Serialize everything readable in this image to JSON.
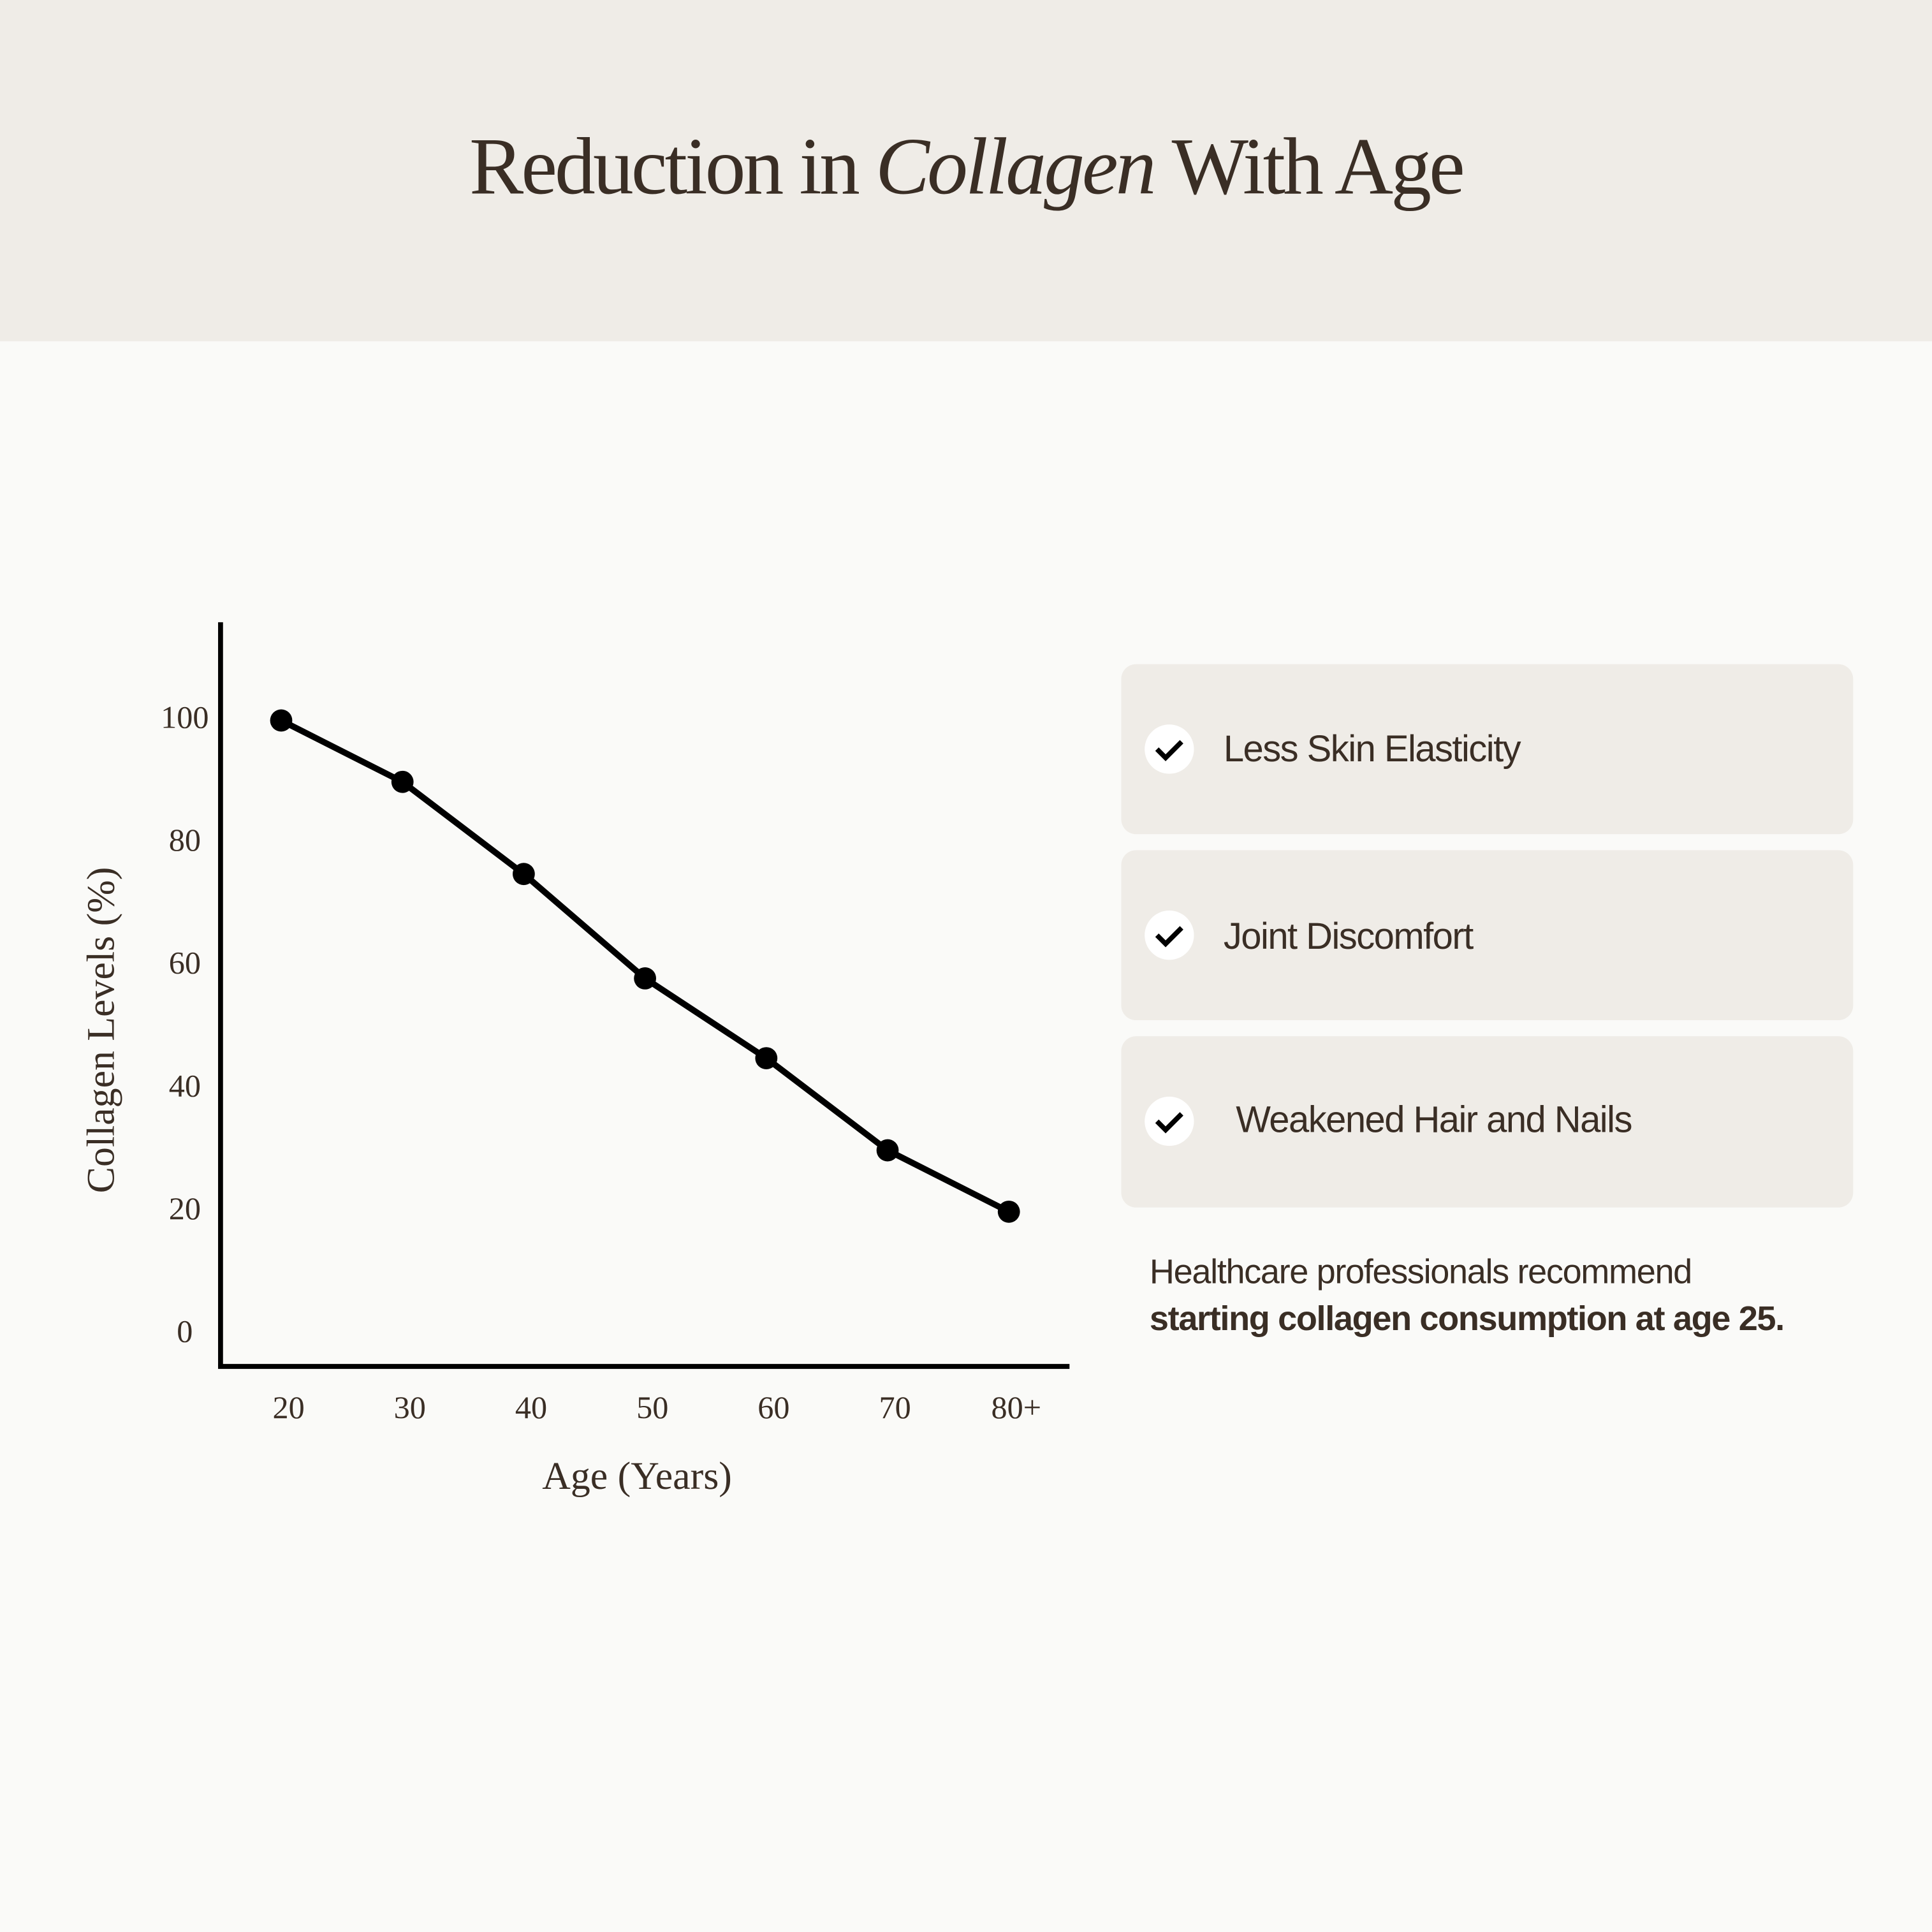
{
  "chart_data": {
    "type": "line",
    "title": [
      "Reduction in",
      "Collagen",
      "With Age"
    ],
    "x_label": "Age (Years)",
    "y_label": "Collagen Levels (%)",
    "categories": [
      "20",
      "30",
      "40",
      "50",
      "60",
      "70",
      "80+"
    ],
    "values": [
      100,
      90,
      75,
      58,
      45,
      30,
      20
    ],
    "color": "#000000",
    "ylim": [
      -5.2,
      116
    ],
    "yticks": [
      0,
      20,
      40,
      60,
      80,
      100
    ]
  },
  "checklist": [
    "Less Skin Elasticity",
    "Joint Discomfort",
    "Weakened Hair and Nails"
  ],
  "note": [
    "Healthcare professionals recommend",
    "starting collagen consumption at age 25."
  ]
}
